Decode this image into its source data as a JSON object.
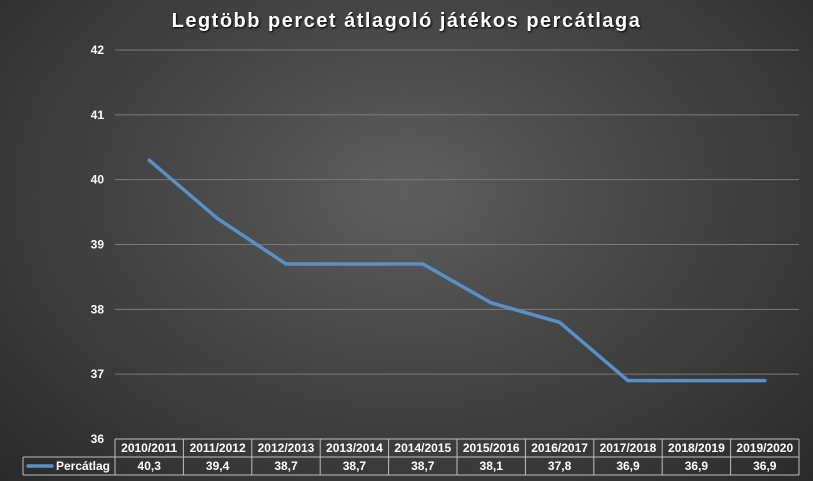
{
  "chart_data": {
    "type": "line",
    "title": "Legtöbb percet átlagoló játékos percátlaga",
    "categories": [
      "2010/2011",
      "2011/2012",
      "2012/2013",
      "2013/2014",
      "2014/2015",
      "2015/2016",
      "2016/2017",
      "2017/2018",
      "2018/2019",
      "2019/2020"
    ],
    "series": [
      {
        "name": "Percátlag",
        "values": [
          40.3,
          39.4,
          38.7,
          38.7,
          38.7,
          38.1,
          37.8,
          36.9,
          36.9,
          36.9
        ],
        "value_labels": [
          "40,3",
          "39,4",
          "38,7",
          "38,7",
          "38,7",
          "38,1",
          "37,8",
          "36,9",
          "36,9",
          "36,9"
        ],
        "color": "#5b8fc9"
      }
    ],
    "ylim": [
      36,
      42
    ],
    "yticks": [
      36,
      37,
      38,
      39,
      40,
      41,
      42
    ],
    "grid": true,
    "legend": "data-table"
  }
}
